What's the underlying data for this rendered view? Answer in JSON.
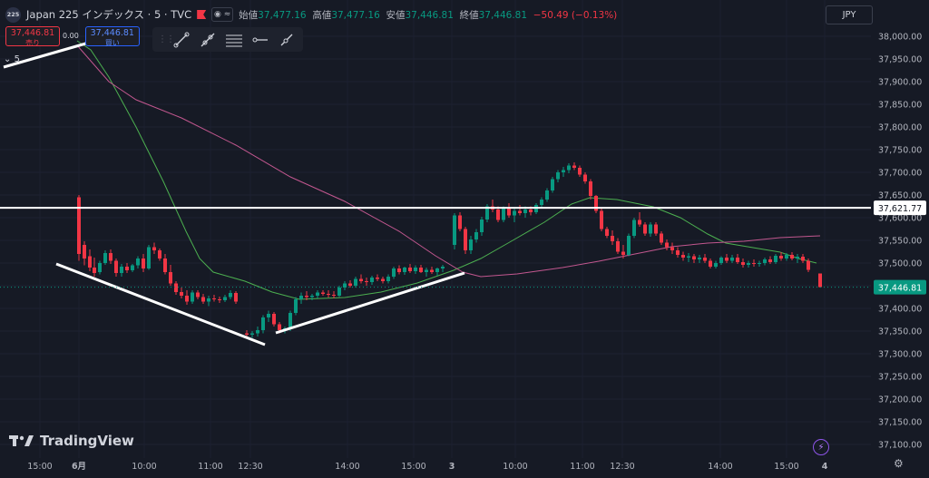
{
  "symbol": {
    "badge": "225",
    "title": "Japan 225 インデックス · 5 · TVC",
    "open_label": "始値",
    "open": "37,477.16",
    "high_label": "高値",
    "high": "37,477.16",
    "low_label": "安値",
    "low": "37,446.81",
    "close_label": "終値",
    "close": "37,446.81",
    "change": "−50.49 (−0.13%)"
  },
  "trade": {
    "sell_price": "37,446.81",
    "sell_label": "売り",
    "spread": "0.00",
    "buy_price": "37,446.81",
    "buy_label": "買い"
  },
  "interval_toggle": "5",
  "currency": "JPY",
  "brand": "TradingView",
  "price_tags": {
    "horizontal_line": "37,621.77",
    "last_price": "37,446.81"
  },
  "colors": {
    "up": "#089981",
    "down": "#f23645",
    "ma_fast": "#4caf50",
    "ma_slow": "#c2578f",
    "background": "#161a25"
  },
  "chart_data": {
    "type": "candlestick",
    "y_ticks": [
      "38,000.00",
      "37,950.00",
      "37,900.00",
      "37,850.00",
      "37,800.00",
      "37,750.00",
      "37,700.00",
      "37,650.00",
      "37,600.00",
      "37,550.00",
      "37,500.00",
      "37,450.00",
      "37,400.00",
      "37,350.00",
      "37,300.00",
      "37,250.00",
      "37,200.00",
      "37,150.00",
      "37,100.00"
    ],
    "ylim": [
      37070,
      38030
    ],
    "x_ticks": [
      "15:00",
      "6月",
      "10:00",
      "11:00",
      "12:30",
      "14:00",
      "15:00",
      "3",
      "10:00",
      "11:00",
      "12:30",
      "14:00",
      "15:00",
      "4"
    ],
    "horizontal_line": 37621.77,
    "last_price": 37446.81
  }
}
